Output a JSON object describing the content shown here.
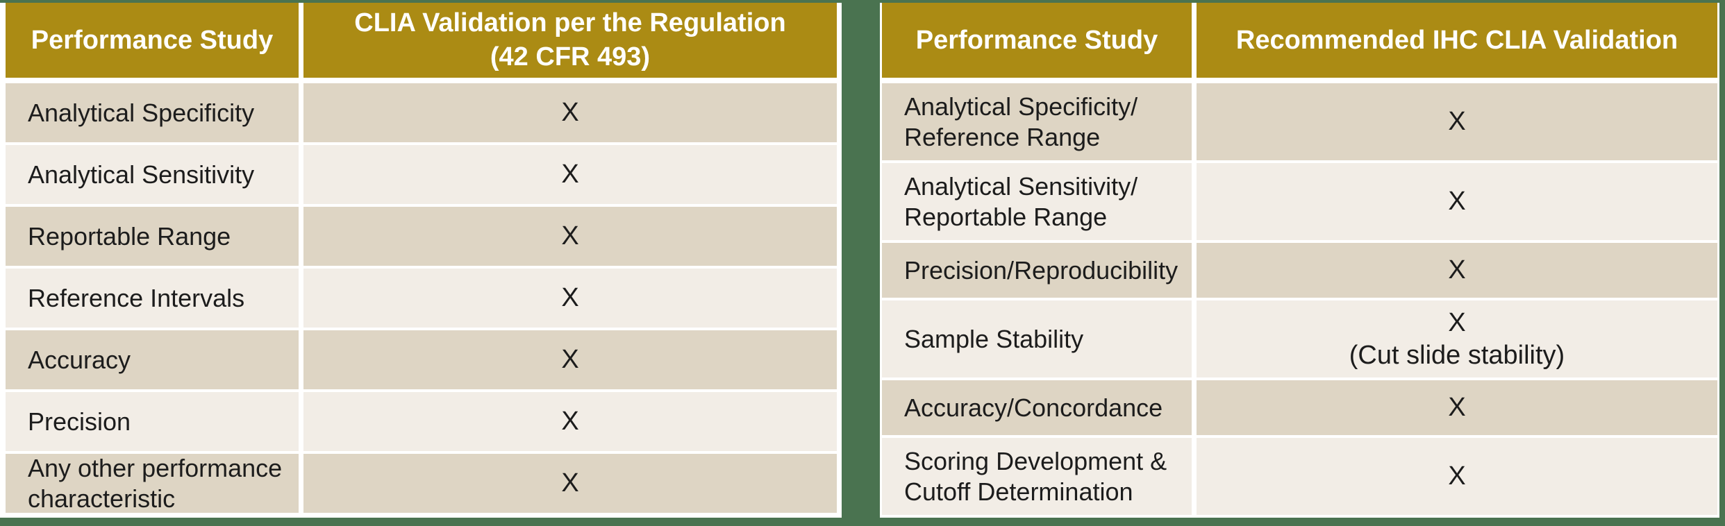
{
  "colors": {
    "page_background": "#4A7350",
    "header_background": "#AB8B14",
    "header_text": "#FFFFFF",
    "row_dark": "#DED5C4",
    "row_light": "#F2EDE6",
    "body_text": "#1C1C1C",
    "card_background": "#FFFFFF"
  },
  "left_table": {
    "headers": {
      "study": "Performance Study",
      "validation": "CLIA Validation per the Regulation\n(42 CFR 493)"
    },
    "rows": [
      {
        "study": "Analytical Specificity",
        "value": "X"
      },
      {
        "study": "Analytical Sensitivity",
        "value": "X"
      },
      {
        "study": "Reportable Range",
        "value": "X"
      },
      {
        "study": "Reference Intervals",
        "value": "X"
      },
      {
        "study": "Accuracy",
        "value": "X"
      },
      {
        "study": "Precision",
        "value": "X"
      },
      {
        "study": "Any other performance\ncharacteristic",
        "value": "X"
      }
    ]
  },
  "right_table": {
    "headers": {
      "study": "Performance Study",
      "validation": "Recommended IHC CLIA Validation"
    },
    "rows": [
      {
        "study": "Analytical Specificity/\nReference Range",
        "value": "X"
      },
      {
        "study": "Analytical Sensitivity/\nReportable Range",
        "value": "X"
      },
      {
        "study": "Precision/Reproducibility",
        "value": "X"
      },
      {
        "study": "Sample Stability",
        "value": "X\n(Cut slide stability)"
      },
      {
        "study": "Accuracy/Concordance",
        "value": "X"
      },
      {
        "study": "Scoring Development &\nCutoff Determination",
        "value": "X"
      }
    ]
  }
}
